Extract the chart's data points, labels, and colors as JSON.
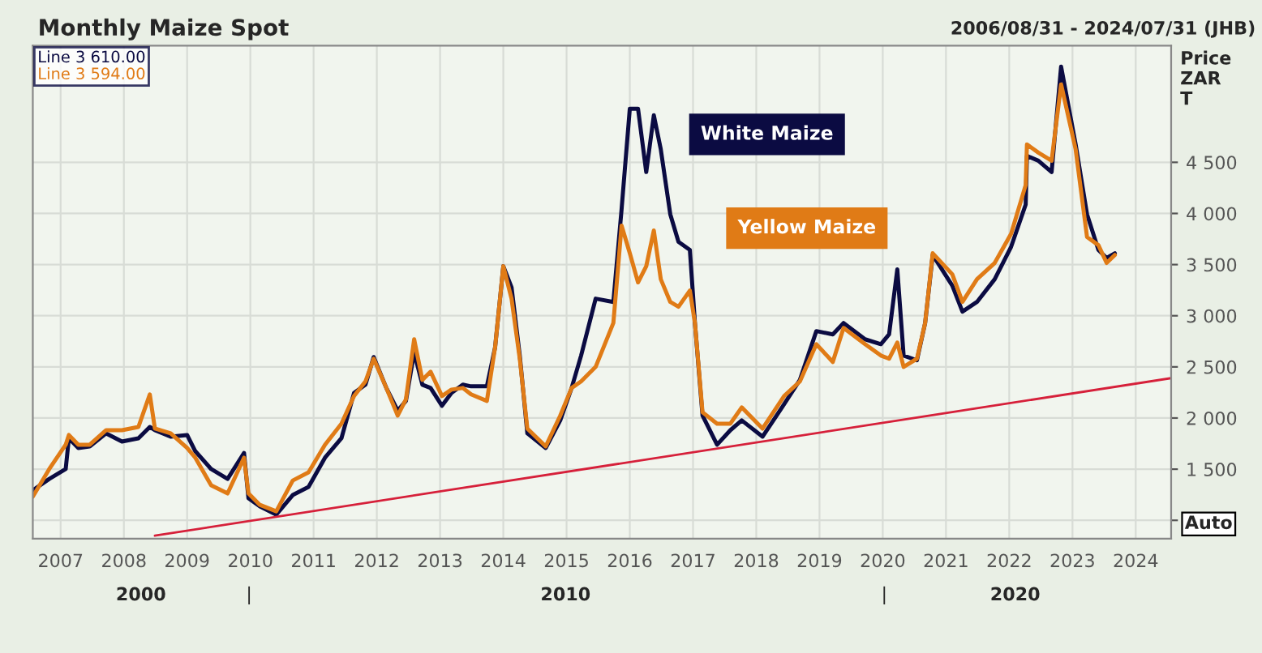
{
  "chart_data": {
    "type": "line",
    "title": "Monthly Maize Spot",
    "subtitle": "2006/08/31 - 2024/07/31 (JHB)",
    "ylabel": "Price\nZAR\nT",
    "x": [
      2006.56,
      2006.82,
      2007.08,
      2007.13,
      2007.28,
      2007.46,
      2007.72,
      2007.97,
      2008.23,
      2008.41,
      2008.49,
      2008.74,
      2009.0,
      2009.13,
      2009.38,
      2009.64,
      2009.9,
      2009.97,
      2010.15,
      2010.41,
      2010.67,
      2010.92,
      2011.18,
      2011.44,
      2011.64,
      2011.82,
      2011.95,
      2012.15,
      2012.33,
      2012.46,
      2012.59,
      2012.72,
      2012.85,
      2013.03,
      2013.18,
      2013.36,
      2013.49,
      2013.74,
      2013.87,
      2014.0,
      2014.13,
      2014.26,
      2014.38,
      2014.67,
      2014.9,
      2015.08,
      2015.23,
      2015.46,
      2015.74,
      2015.87,
      2016.0,
      2016.13,
      2016.26,
      2016.38,
      2016.49,
      2016.64,
      2016.77,
      2016.95,
      2017.03,
      2017.15,
      2017.38,
      2017.59,
      2017.77,
      2018.1,
      2018.44,
      2018.69,
      2018.95,
      2019.21,
      2019.38,
      2019.72,
      2019.97,
      2020.1,
      2020.23,
      2020.33,
      2020.54,
      2020.67,
      2020.79,
      2021.1,
      2021.26,
      2021.49,
      2021.77,
      2022.03,
      2022.26,
      2022.28,
      2022.46,
      2022.67,
      2022.82,
      2023.05,
      2023.23,
      2023.41,
      2023.54,
      2023.67
    ],
    "series": [
      {
        "name": "Line 3 610.00",
        "color": "#0b0b42",
        "values": [
          1294,
          1405,
          1501,
          1802,
          1707,
          1723,
          1850,
          1770,
          1802,
          1913,
          1881,
          1818,
          1834,
          1675,
          1501,
          1405,
          1659,
          1215,
          1136,
          1056,
          1247,
          1326,
          1612,
          1802,
          2246,
          2326,
          2596,
          2294,
          2072,
          2167,
          2643,
          2326,
          2294,
          2120,
          2246,
          2326,
          2310,
          2310,
          2691,
          3484,
          3278,
          2611,
          1850,
          1707,
          1977,
          2294,
          2611,
          3167,
          3135,
          4040,
          5024,
          5024,
          4405,
          4960,
          4627,
          3992,
          3722,
          3643,
          2929,
          2024,
          1739,
          1881,
          1977,
          1818,
          2135,
          2373,
          2850,
          2818,
          2929,
          2770,
          2722,
          2818,
          3453,
          2611,
          2564,
          2929,
          3595,
          3294,
          3040,
          3135,
          3357,
          3675,
          4087,
          4563,
          4516,
          4405,
          5436,
          4675,
          3992,
          3643,
          3564,
          3610
        ]
      },
      {
        "name": "Line 3 594.00",
        "color": "#e07b16",
        "values": [
          1231,
          1501,
          1739,
          1834,
          1739,
          1739,
          1881,
          1881,
          1913,
          2231,
          1897,
          1850,
          1707,
          1612,
          1342,
          1263,
          1612,
          1263,
          1151,
          1088,
          1389,
          1469,
          1739,
          1945,
          2215,
          2358,
          2580,
          2294,
          2024,
          2183,
          2770,
          2373,
          2453,
          2215,
          2278,
          2294,
          2231,
          2167,
          2691,
          3484,
          3167,
          2580,
          1897,
          1723,
          2024,
          2294,
          2358,
          2500,
          2929,
          3881,
          3611,
          3326,
          3484,
          3833,
          3357,
          3135,
          3088,
          3246,
          2929,
          2056,
          1945,
          1945,
          2104,
          1897,
          2215,
          2358,
          2722,
          2548,
          2881,
          2722,
          2611,
          2580,
          2738,
          2500,
          2580,
          2929,
          3611,
          3405,
          3135,
          3357,
          3516,
          3802,
          4278,
          4675,
          4595,
          4516,
          5262,
          4627,
          3770,
          3690,
          3516,
          3594
        ]
      },
      {
        "type": "line",
        "color": "#d6203a",
        "x": [
          2008.49,
          2024.56
        ],
        "values": [
          850,
          2390
        ]
      }
    ],
    "xlim": [
      2006.56,
      2024.56
    ],
    "xticks": [
      2007,
      2008,
      2009,
      2010,
      2011,
      2012,
      2013,
      2014,
      2015,
      2016,
      2017,
      2018,
      2019,
      2020,
      2021,
      2022,
      2023,
      2024
    ],
    "ylim": [
      820,
      5640
    ],
    "yticks": [
      {
        "value": 1000,
        "label": null
      },
      {
        "value": 1500,
        "label": "1 500"
      },
      {
        "value": 2000,
        "label": "2 000"
      },
      {
        "value": 2500,
        "label": "2 500"
      },
      {
        "value": 3000,
        "label": "3 000"
      },
      {
        "value": 3500,
        "label": "3 500"
      },
      {
        "value": 4000,
        "label": "4 000"
      },
      {
        "value": 4500,
        "label": "4 500"
      }
    ],
    "annotations": [
      "White Maize",
      "Yellow Maize",
      "Auto",
      "2000",
      "|",
      "2010",
      "|",
      "2020"
    ],
    "grid": true,
    "legend": "top left"
  }
}
